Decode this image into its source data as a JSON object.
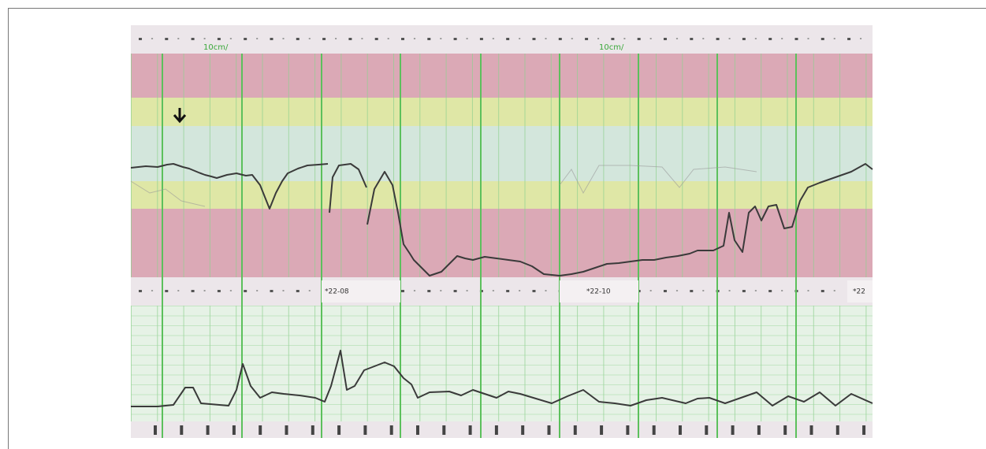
{
  "strip_labels": [
    "*22-08",
    "*22-10",
    "*22"
  ],
  "speed_labels": [
    "10cm/",
    "10cm/"
  ]
}
